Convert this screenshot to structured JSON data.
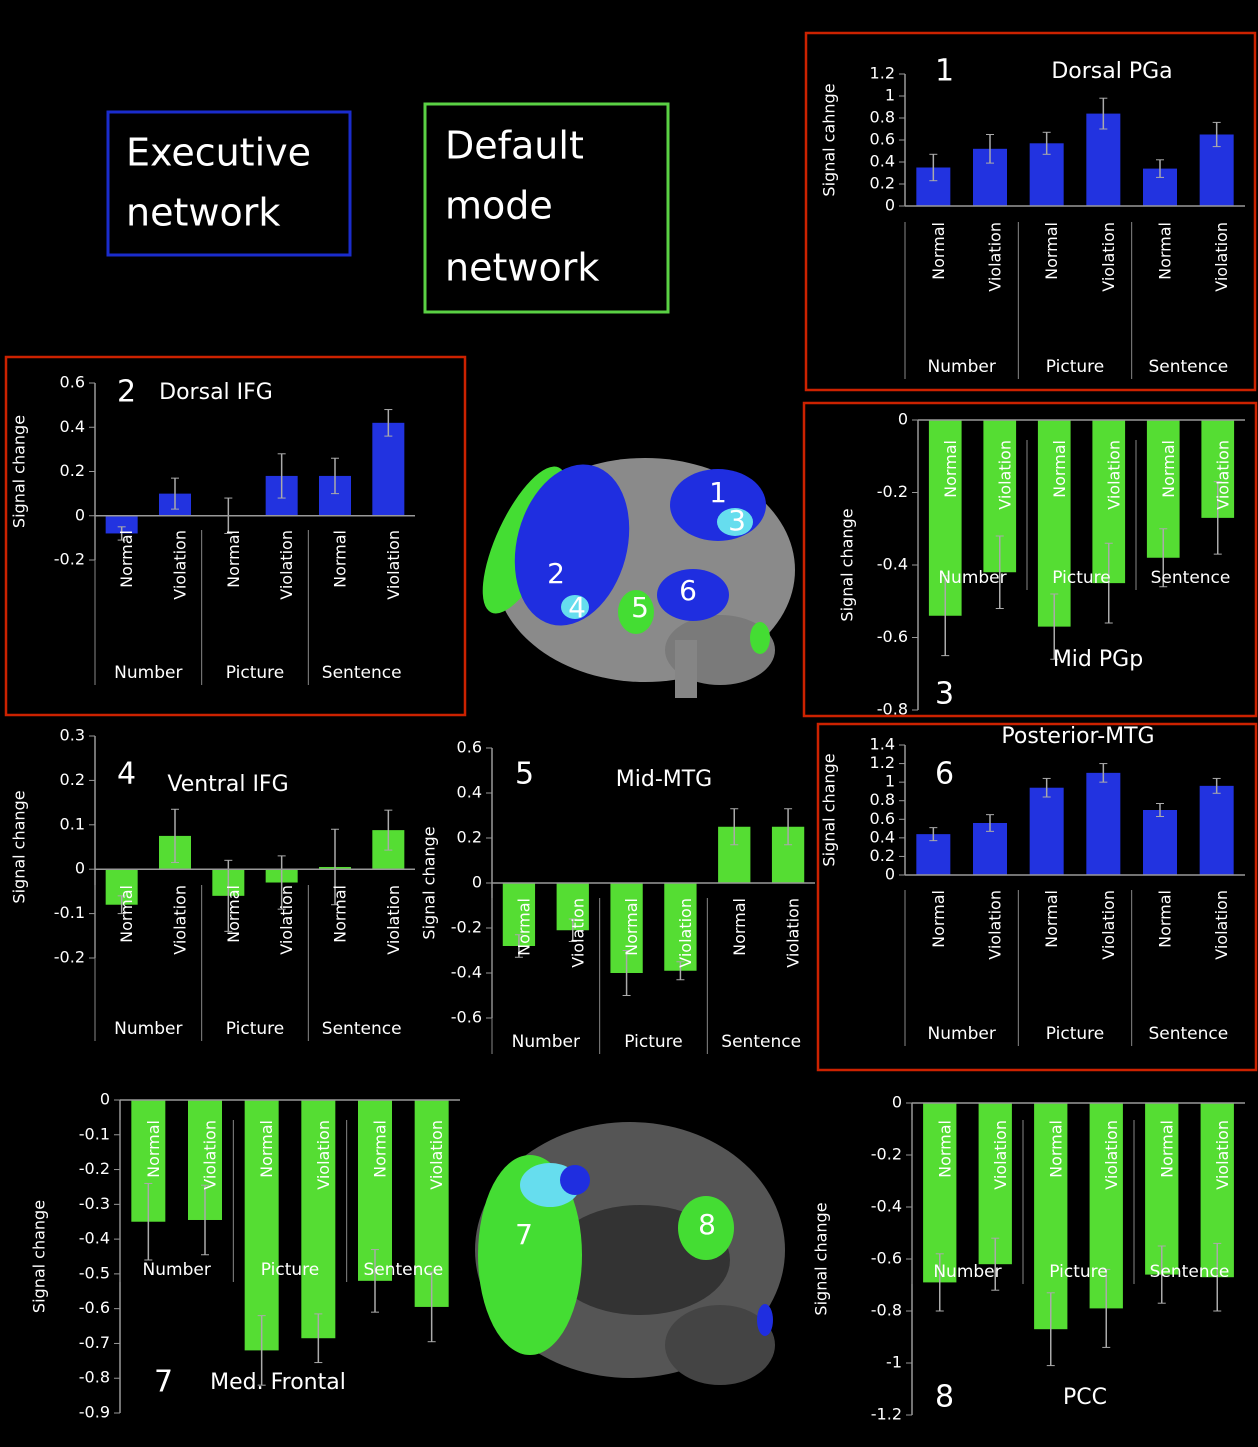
{
  "legend": [
    {
      "lines": [
        "Executive",
        "network"
      ],
      "color": "#1a2ccc"
    },
    {
      "lines": [
        "Default",
        "mode",
        "network"
      ],
      "color": "#5ad044"
    }
  ],
  "brain_labels": [
    "1",
    "3",
    "2",
    "4",
    "5",
    "6",
    "7",
    "8"
  ],
  "chart_data": [
    {
      "type": "bar",
      "panel": "1",
      "title": "Dorsal PGa",
      "ylabel": "Signal cahnge",
      "categories": [
        "Normal",
        "Violation",
        "Normal",
        "Violation",
        "Normal",
        "Violation"
      ],
      "groups": [
        "Number",
        "Picture",
        "Sentence"
      ],
      "values": [
        0.35,
        0.52,
        0.57,
        0.84,
        0.34,
        0.65
      ],
      "errors": [
        0.12,
        0.13,
        0.1,
        0.14,
        0.08,
        0.11
      ],
      "color": "#2233e0",
      "ylim": [
        0,
        1.2
      ],
      "yticks": [
        0,
        0.2,
        0.4,
        0.6,
        0.8,
        1,
        1.2
      ]
    },
    {
      "type": "bar",
      "panel": "2",
      "title": "Dorsal IFG",
      "ylabel": "Signal change",
      "categories": [
        "Normal",
        "Violation",
        "Normal",
        "Violation",
        "Normal",
        "Violation"
      ],
      "groups": [
        "Number",
        "Picture",
        "Sentence"
      ],
      "values": [
        -0.08,
        0.1,
        0,
        0.18,
        0.18,
        0.42
      ],
      "errors": [
        0.03,
        0.07,
        0.08,
        0.1,
        0.08,
        0.06
      ],
      "color": "#2233e0",
      "ylim": [
        -0.2,
        0.6
      ],
      "yticks": [
        -0.2,
        0,
        0.2,
        0.4,
        0.6
      ]
    },
    {
      "type": "bar",
      "panel": "3",
      "title": "Mid PGp",
      "ylabel": "Signal change",
      "categories": [
        "Normal",
        "Violation",
        "Normal",
        "Violation",
        "Normal",
        "Violation"
      ],
      "groups": [
        "Number",
        "Picture",
        "Sentence"
      ],
      "values": [
        -0.54,
        -0.42,
        -0.57,
        -0.45,
        -0.38,
        -0.27
      ],
      "errors": [
        0.11,
        0.1,
        0.09,
        0.11,
        0.08,
        0.1
      ],
      "color": "#55dd33",
      "ylim": [
        -0.8,
        0
      ],
      "yticks": [
        -0.8,
        -0.6,
        -0.4,
        -0.2,
        0
      ]
    },
    {
      "type": "bar",
      "panel": "4",
      "title": "Ventral IFG",
      "ylabel": "Signal change",
      "categories": [
        "Normal",
        "Violation",
        "Normal",
        "Violation",
        "Normal",
        "Violation"
      ],
      "groups": [
        "Number",
        "Picture",
        "Sentence"
      ],
      "values": [
        -0.08,
        0.075,
        -0.06,
        -0.03,
        0.005,
        0.088
      ],
      "errors": [
        0.02,
        0.06,
        0.08,
        0.06,
        0.085,
        0.045
      ],
      "color": "#55dd33",
      "ylim": [
        -0.2,
        0.3
      ],
      "yticks": [
        -0.2,
        -0.1,
        0,
        0.1,
        0.2,
        0.3
      ]
    },
    {
      "type": "bar",
      "panel": "5",
      "title": "Mid-MTG",
      "ylabel": "Signal change",
      "categories": [
        "Normal",
        "Violation",
        "Normal",
        "Violation",
        "Normal",
        "Violation"
      ],
      "groups": [
        "Number",
        "Picture",
        "Sentence"
      ],
      "values": [
        -0.28,
        -0.21,
        -0.4,
        -0.39,
        0.25,
        0.25
      ],
      "errors": [
        0.05,
        0.05,
        0.1,
        0.04,
        0.08,
        0.08
      ],
      "color": "#55dd33",
      "ylim": [
        -0.6,
        0.6
      ],
      "yticks": [
        -0.6,
        -0.4,
        -0.2,
        0,
        0.2,
        0.4,
        0.6
      ]
    },
    {
      "type": "bar",
      "panel": "6",
      "title": "Posterior-MTG",
      "ylabel": "Signal change",
      "categories": [
        "Normal",
        "Violation",
        "Normal",
        "Violation",
        "Normal",
        "Violation"
      ],
      "groups": [
        "Number",
        "Picture",
        "Sentence"
      ],
      "values": [
        0.44,
        0.56,
        0.94,
        1.1,
        0.7,
        0.96
      ],
      "errors": [
        0.07,
        0.09,
        0.1,
        0.1,
        0.07,
        0.08
      ],
      "color": "#2233e0",
      "ylim": [
        0,
        1.4
      ],
      "yticks": [
        0,
        0.2,
        0.4,
        0.6,
        0.8,
        1,
        1.2,
        1.4
      ]
    },
    {
      "type": "bar",
      "panel": "7",
      "title": "Med. Frontal",
      "ylabel": "Signal change",
      "categories": [
        "Normal",
        "Violation",
        "Normal",
        "Violation",
        "Normal",
        "Violation"
      ],
      "groups": [
        "Number",
        "Picture",
        "Sentence"
      ],
      "values": [
        -0.35,
        -0.345,
        -0.72,
        -0.685,
        -0.52,
        -0.595
      ],
      "errors": [
        0.11,
        0.1,
        0.1,
        0.07,
        0.09,
        0.1
      ],
      "color": "#55dd33",
      "ylim": [
        -0.9,
        0
      ],
      "yticks": [
        -0.9,
        -0.8,
        -0.7,
        -0.6,
        -0.5,
        -0.4,
        -0.3,
        -0.2,
        -0.1,
        0
      ]
    },
    {
      "type": "bar",
      "panel": "8",
      "title": "PCC",
      "ylabel": "Signal change",
      "categories": [
        "Normal",
        "Violation",
        "Normal",
        "Violation",
        "Normal",
        "Violation"
      ],
      "groups": [
        "Number",
        "Picture",
        "Sentence"
      ],
      "values": [
        -0.69,
        -0.62,
        -0.87,
        -0.79,
        -0.66,
        -0.67
      ],
      "errors": [
        0.11,
        0.1,
        0.14,
        0.15,
        0.11,
        0.13
      ],
      "color": "#55dd33",
      "ylim": [
        -1.2,
        0
      ],
      "yticks": [
        -1.2,
        -1,
        -0.8,
        -0.6,
        -0.4,
        -0.2,
        0
      ]
    }
  ]
}
